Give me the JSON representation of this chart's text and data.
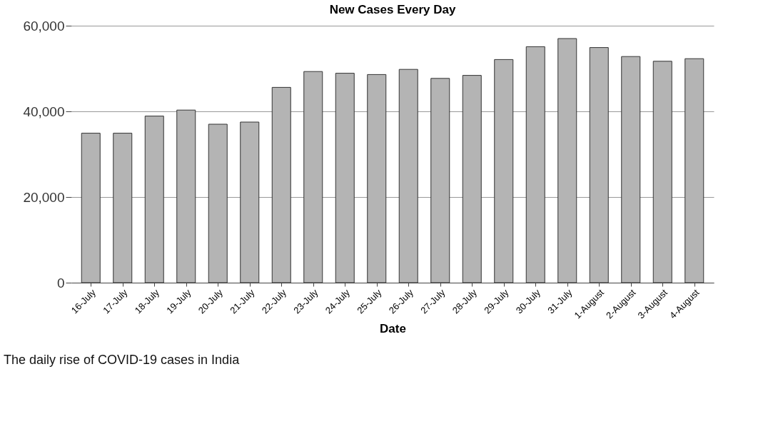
{
  "chart_data": {
    "type": "bar",
    "title": "New Cases Every Day",
    "xlabel": "Date",
    "categories": [
      "16-July",
      "17-July",
      "18-July",
      "19-July",
      "20-July",
      "21-July",
      "22-July",
      "23-July",
      "24-July",
      "25-July",
      "26-July",
      "27-July",
      "28-July",
      "29-July",
      "30-July",
      "31-July",
      "1-August",
      "2-August",
      "3-August",
      "4-August"
    ],
    "values": [
      34900,
      34900,
      38900,
      40300,
      37000,
      37500,
      45600,
      49300,
      48900,
      48600,
      49800,
      47700,
      48400,
      52100,
      55100,
      57000,
      54900,
      52800,
      51700,
      52300
    ],
    "color": "#b4b4b4",
    "ylim": [
      0,
      60000
    ],
    "yticks": [
      {
        "value": 0,
        "label": "0"
      },
      {
        "value": 20000,
        "label": "20,000"
      },
      {
        "value": 40000,
        "label": "40,000"
      },
      {
        "value": 60000,
        "label": "60,000"
      }
    ],
    "grid": "y",
    "annotations": [
      "The daily rise of COVID-19 cases in India"
    ]
  }
}
